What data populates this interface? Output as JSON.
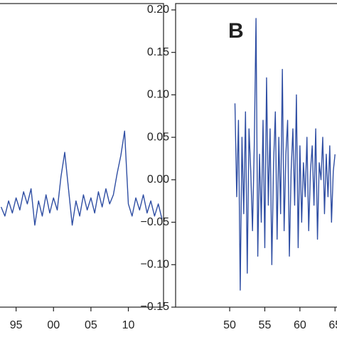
{
  "chart_data": [
    {
      "type": "line",
      "color": "#2f4ea3",
      "x": [
        93,
        93.5,
        94,
        94.5,
        95,
        95.5,
        96,
        96.5,
        97,
        97.5,
        98,
        98.5,
        99,
        99.5,
        100,
        100.5,
        101,
        101.5,
        102,
        102.5,
        103,
        103.5,
        104,
        104.5,
        105,
        105.5,
        106,
        106.5,
        107,
        107.5,
        108,
        108.5,
        109,
        109.5,
        110,
        110.5,
        111,
        111.5,
        112,
        112.5,
        113,
        113.5,
        114,
        114.5
      ],
      "values": [
        3.3,
        3.0,
        3.5,
        3.1,
        3.6,
        3.2,
        3.8,
        3.4,
        3.9,
        2.7,
        3.5,
        3.0,
        3.7,
        3.1,
        3.6,
        3.2,
        4.3,
        5.1,
        3.9,
        2.7,
        3.5,
        3.0,
        3.7,
        3.2,
        3.6,
        3.1,
        3.8,
        3.3,
        3.9,
        3.4,
        3.7,
        4.4,
        5.0,
        5.8,
        3.4,
        3.0,
        3.6,
        3.2,
        3.7,
        3.1,
        3.5,
        3.0,
        3.4,
        2.9
      ],
      "xlim": [
        91.9,
        114.7
      ],
      "xticks": [
        95,
        {
          "value": 100,
          "label": "00"
        },
        {
          "value": 105,
          "label": "05"
        },
        {
          "value": 110,
          "label": "10"
        }
      ],
      "ylim": [
        0,
        10
      ]
    },
    {
      "type": "line",
      "label": "B",
      "color": "#2f4ea3",
      "x": [
        50.75,
        51,
        51.25,
        51.5,
        51.75,
        52,
        52.25,
        52.5,
        52.75,
        53,
        53.25,
        53.5,
        53.75,
        54,
        54.25,
        54.5,
        54.75,
        55,
        55.25,
        55.5,
        55.75,
        56,
        56.25,
        56.5,
        56.75,
        57,
        57.25,
        57.5,
        57.75,
        58,
        58.25,
        58.5,
        58.75,
        59,
        59.25,
        59.5,
        59.75,
        60,
        60.25,
        60.5,
        60.75,
        61,
        61.25,
        61.5,
        61.75,
        62,
        62.25,
        62.5,
        62.75,
        63,
        63.25,
        63.5,
        63.75,
        64,
        64.25,
        64.5,
        64.75,
        65
      ],
      "values": [
        0.09,
        -0.02,
        0.07,
        -0.13,
        0.05,
        -0.04,
        0.08,
        -0.11,
        0.06,
        0.01,
        -0.06,
        0.04,
        0.19,
        -0.09,
        0.03,
        -0.05,
        0.07,
        -0.08,
        0.12,
        -0.03,
        0.06,
        -0.1,
        0.02,
        0.08,
        -0.07,
        0.05,
        -0.04,
        0.13,
        -0.06,
        0.03,
        0.07,
        -0.09,
        0.01,
        0.06,
        -0.03,
        0.1,
        -0.08,
        0.04,
        -0.05,
        0.02,
        -0.02,
        0.05,
        -0.06,
        0.01,
        0.04,
        -0.03,
        0.06,
        -0.07,
        0.02,
        0.0,
        0.05,
        -0.04,
        0.03,
        -0.02,
        0.04,
        -0.05,
        0.01,
        0.03
      ],
      "xlim": [
        42.3,
        66.9
      ],
      "xticks": [
        50,
        55,
        60,
        65
      ],
      "ylim": [
        -0.15,
        0.2075
      ],
      "yticks": [
        {
          "value": 0.2,
          "label": "0.20"
        },
        {
          "value": 0.15,
          "label": "0.15"
        },
        {
          "value": 0.1,
          "label": "0.10"
        },
        {
          "value": 0.05,
          "label": "0.05"
        },
        {
          "value": 0,
          "label": "0.00"
        },
        {
          "value": -0.05,
          "label": "−0.05"
        },
        {
          "value": -0.1,
          "label": "−0.10"
        },
        {
          "value": -0.15,
          "label": "−0.15"
        }
      ]
    }
  ]
}
